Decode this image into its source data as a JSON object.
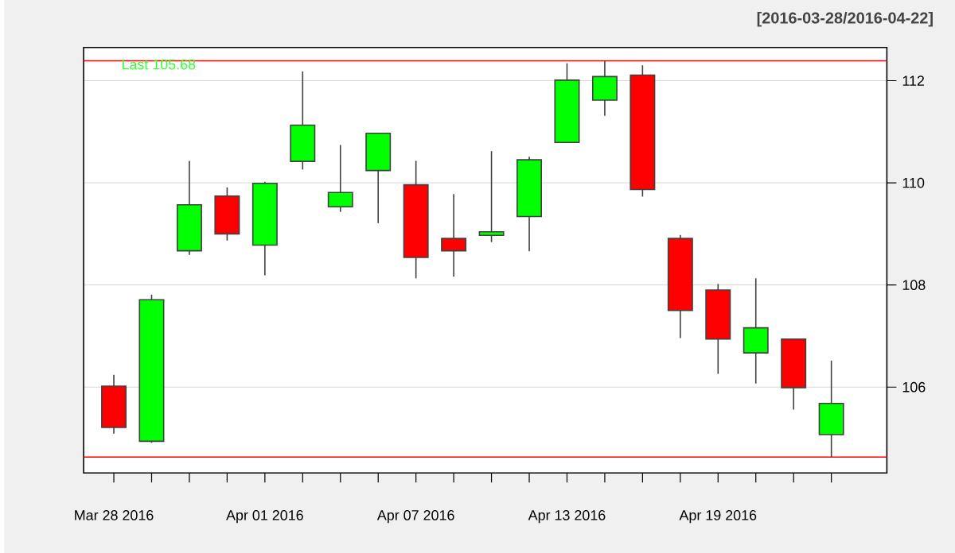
{
  "chart_data": {
    "type": "candlestick",
    "subtitle": "[2016-03-28/2016-04-22]",
    "annotations": [
      "Last 105.68"
    ],
    "categories": [
      "Mar 28 2016",
      null,
      null,
      null,
      "Apr 01 2016",
      null,
      null,
      null,
      "Apr 07 2016",
      null,
      null,
      null,
      "Apr 13 2016",
      null,
      null,
      null,
      "Apr 19 2016",
      null,
      null,
      null
    ],
    "ohlc": [
      [
        106.02,
        106.24,
        105.09,
        105.21
      ],
      [
        104.94,
        107.81,
        104.91,
        107.71
      ],
      [
        108.67,
        110.43,
        108.59,
        109.57
      ],
      [
        109.74,
        109.91,
        108.87,
        109.0
      ],
      [
        108.78,
        110.02,
        108.19,
        109.99
      ],
      [
        110.42,
        112.18,
        110.26,
        111.13
      ],
      [
        109.53,
        110.74,
        109.43,
        109.81
      ],
      [
        110.24,
        110.97,
        109.21,
        110.97
      ],
      [
        109.96,
        110.43,
        108.13,
        108.54
      ],
      [
        108.91,
        109.78,
        108.16,
        108.67
      ],
      [
        108.97,
        110.62,
        108.84,
        109.04
      ],
      [
        109.34,
        110.51,
        108.66,
        110.45
      ],
      [
        110.79,
        112.34,
        110.79,
        112.01
      ],
      [
        111.62,
        112.39,
        111.31,
        112.08
      ],
      [
        112.11,
        112.3,
        109.73,
        109.87
      ],
      [
        108.91,
        108.98,
        106.96,
        107.5
      ],
      [
        107.9,
        108.02,
        106.26,
        106.94
      ],
      [
        106.67,
        108.13,
        106.07,
        107.16
      ],
      [
        106.94,
        106.94,
        105.56,
        105.99
      ],
      [
        105.07,
        106.52,
        104.63,
        105.68
      ]
    ],
    "colors": [
      "#ff0000",
      "#00ff00",
      "#00ff00",
      "#ff0000",
      "#00ff00",
      "#00ff00",
      "#00ff00",
      "#00ff00",
      "#ff0000",
      "#ff0000",
      "#00ff00",
      "#00ff00",
      "#00ff00",
      "#00ff00",
      "#ff0000",
      "#ff0000",
      "#ff0000",
      "#00ff00",
      "#ff0000",
      "#00ff00"
    ],
    "ylim": [
      104.32,
      112.65
    ],
    "yticks": [
      106,
      108,
      110,
      112
    ],
    "grid": "y",
    "ref_lines": [
      {
        "axis": "y",
        "value": 112.39,
        "color": "#ff0000"
      },
      {
        "axis": "y",
        "value": 104.63,
        "color": "#ff0000"
      }
    ]
  }
}
